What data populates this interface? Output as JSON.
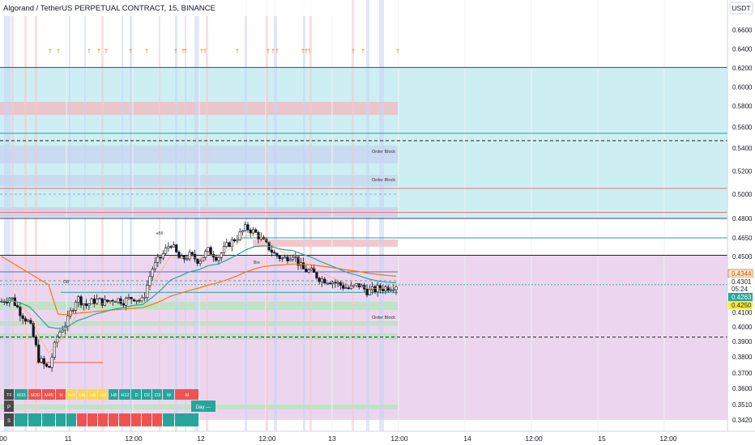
{
  "header": {
    "title": "Algorand / TetherUS PERPETUAL CONTRACT, 15, BINANCE"
  },
  "price_axis": {
    "currency": "USDT",
    "ticks": [
      "0.6600",
      "0.6400",
      "0.6200",
      "0.6000",
      "0.5800",
      "0.5600",
      "0.5400",
      "0.5200",
      "0.5000",
      "0.4800",
      "0.4650",
      "0.4500",
      "0.4300",
      "0.4100",
      "0.4000",
      "0.3900",
      "0.3800",
      "0.3700",
      "0.3600",
      "0.3510",
      "0.3420"
    ],
    "badges": [
      {
        "text": "0.4344",
        "bg": "#fbe3c7",
        "fg": "#c25a00"
      },
      {
        "text": "0.4301",
        "bg": "#ffffff",
        "fg": "#222222"
      },
      {
        "text": "05:24",
        "bg": "#ffffff",
        "fg": "#222222"
      },
      {
        "text": "0.4263",
        "bg": "#26a69a",
        "fg": "#ffffff"
      },
      {
        "text": "0.4250",
        "bg": "#ffeb3b",
        "fg": "#222222"
      }
    ]
  },
  "time_axis": {
    "labels": [
      "00",
      "11",
      "12:00",
      "12",
      "12:00",
      "13",
      "12:00",
      "14",
      "12:00",
      "15",
      "12:00"
    ]
  },
  "annotations": {
    "order_blocks": [
      "Order Block",
      "Order Block",
      "Order Block"
    ],
    "small_labels": [
      "e55",
      "OB",
      "Bre"
    ]
  },
  "table": {
    "header": [
      "TF",
      "M15",
      "M30",
      "M45",
      "H",
      "H4",
      "H6",
      "H8",
      "H9",
      "H8",
      "H12",
      "D",
      "D2",
      "D3",
      "W",
      "M"
    ],
    "p_label": "P",
    "s_label": "S",
    "p_status": "Day ---"
  },
  "colors": {
    "accent_up": "#26a69a",
    "accent_down": "#ef5350",
    "zone_cyan": "#cdeff3",
    "zone_purple": "#ecd6ef"
  },
  "chart_data": {
    "type": "candlestick",
    "title": "Algorand / TetherUS PERPETUAL CONTRACT, 15, BINANCE",
    "y_axis": "USDT",
    "ylim": [
      0.341,
      0.674
    ],
    "x_ticks": [
      "00",
      "11",
      "12:00",
      "12",
      "12:00",
      "13",
      "12:00",
      "14",
      "12:00",
      "15",
      "12:00"
    ],
    "close_path": [
      0.418,
      0.421,
      0.41,
      0.402,
      0.378,
      0.372,
      0.395,
      0.404,
      0.421,
      0.415,
      0.419,
      0.417,
      0.42,
      0.418,
      0.421,
      0.418,
      0.441,
      0.45,
      0.461,
      0.447,
      0.451,
      0.447,
      0.455,
      0.449,
      0.459,
      0.465,
      0.473,
      0.469,
      0.461,
      0.452,
      0.448,
      0.452,
      0.441,
      0.439,
      0.434,
      0.433,
      0.43,
      0.427,
      0.43,
      0.425,
      0.427,
      0.428,
      0.43
    ],
    "last_price": 0.4301,
    "level_lines": [
      0.6205,
      0.554,
      0.547,
      0.505,
      0.485,
      0.48,
      0.451,
      0.393
    ]
  }
}
